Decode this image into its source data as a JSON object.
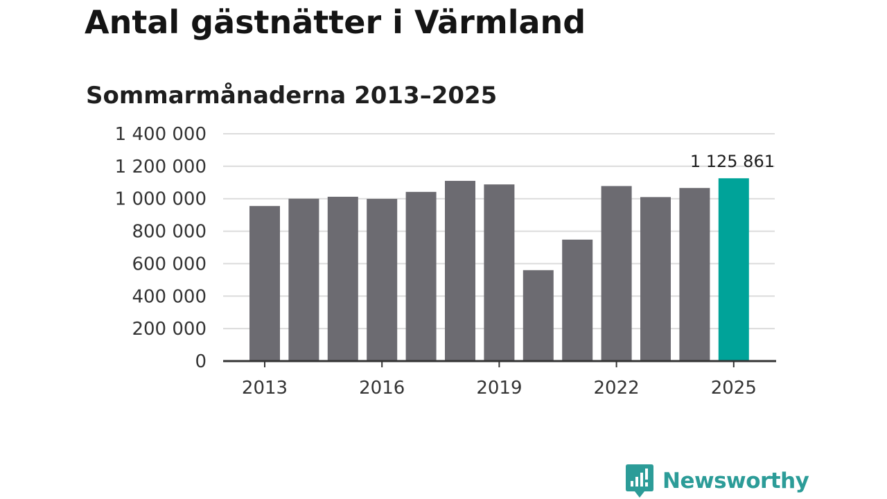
{
  "brand": {
    "name": "Newsworthy",
    "color": "#2c9c98",
    "icon": "bar-chart-speech-bubble-icon"
  },
  "chart_data": {
    "type": "bar",
    "title": "Antal gästnätter i Värmland",
    "subtitle": "Sommarmånaderna 2013–2025",
    "xlabel": "",
    "ylabel": "",
    "categories": [
      "2013",
      "2014",
      "2015",
      "2016",
      "2017",
      "2018",
      "2019",
      "2020",
      "2021",
      "2022",
      "2023",
      "2024",
      "2025"
    ],
    "values": [
      955000,
      1000000,
      1012000,
      999000,
      1042000,
      1110000,
      1088000,
      560000,
      748000,
      1078000,
      1010000,
      1066000,
      1125861
    ],
    "x_tick_labels": [
      "2013",
      "2016",
      "2019",
      "2022",
      "2025"
    ],
    "ylim": [
      0,
      1400000
    ],
    "y_ticks": [
      0,
      200000,
      400000,
      600000,
      800000,
      1000000,
      1200000,
      1400000
    ],
    "y_tick_labels": [
      "0",
      "200 000",
      "400 000",
      "600 000",
      "800 000",
      "1 000 000",
      "1 200 000",
      "1 400 000"
    ],
    "annotations": [
      {
        "category": "2025",
        "text": "1 125 861"
      }
    ],
    "highlight_category": "2025",
    "colors": {
      "bar": "#6c6b71",
      "highlight": "#00a399",
      "grid": "#dcdcdc",
      "axis": "#333333"
    },
    "grid": true,
    "legend": "none"
  }
}
